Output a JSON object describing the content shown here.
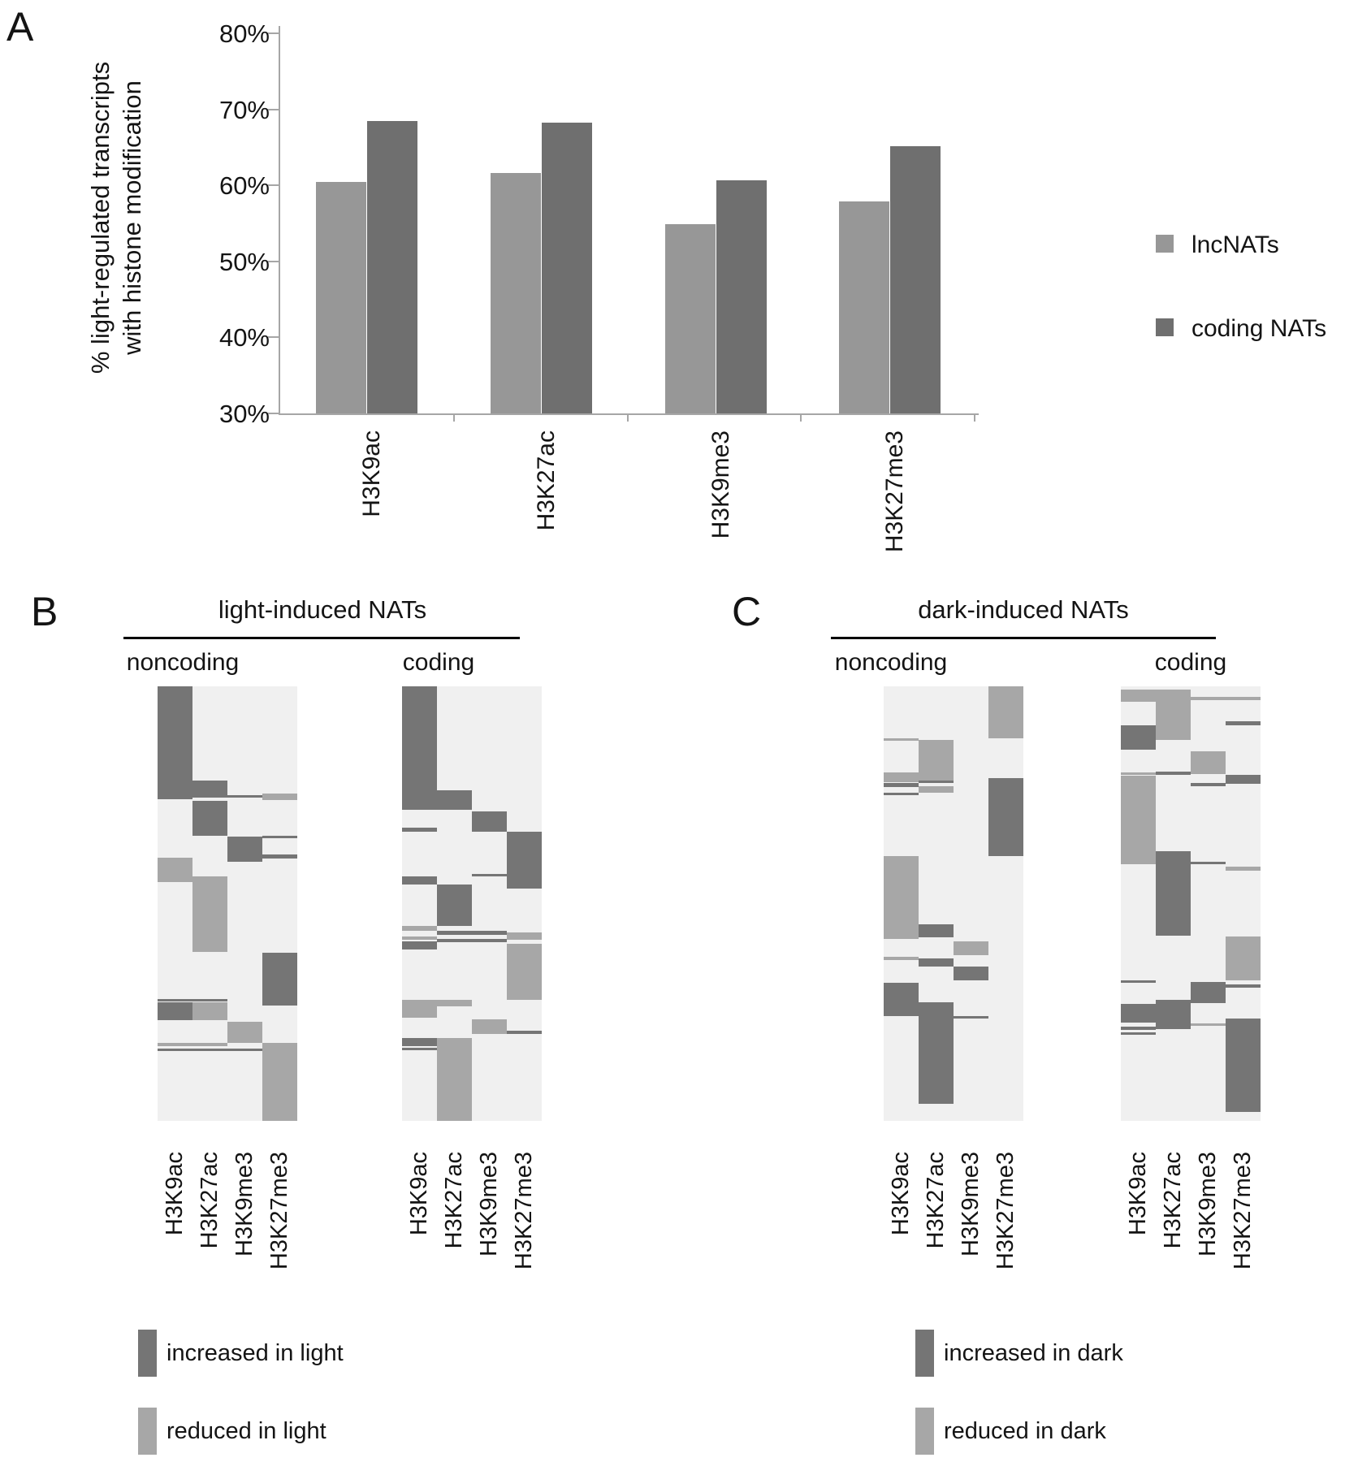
{
  "colors": {
    "bar_light": "#979797",
    "bar_dark": "#6f6f6f",
    "heat_bg": "#f0f0f0",
    "heat_dark": "#757575",
    "heat_light": "#a7a7a7",
    "axis_gray": "#a6a6a6",
    "title_line": "#000000"
  },
  "panel_a": {
    "letter": "A",
    "legend": [
      {
        "name": "lncNATs",
        "shade": "light"
      },
      {
        "name": "coding NATs",
        "shade": "dark"
      }
    ]
  },
  "panel_b": {
    "letter": "B",
    "legend": [
      {
        "label": "increased in light",
        "shade": "dark"
      },
      {
        "label": "reduced in light",
        "shade": "light"
      }
    ]
  },
  "panel_c": {
    "letter": "C",
    "legend": [
      {
        "label": "increased in dark",
        "shade": "dark"
      },
      {
        "label": "reduced in dark",
        "shade": "light"
      }
    ]
  },
  "chart_data": [
    {
      "type": "bar",
      "panel": "A",
      "title": "",
      "ylabel_lines": [
        "% light-regulated transcripts",
        "with histone modification"
      ],
      "categories": [
        "H3K9ac",
        "H3K27ac",
        "H3K9me3",
        "H3K27me3"
      ],
      "series": [
        {
          "name": "lncNATs",
          "shade": "light",
          "values": [
            60.4,
            61.6,
            54.9,
            57.9
          ]
        },
        {
          "name": "coding NATs",
          "shade": "dark",
          "values": [
            68.5,
            68.3,
            60.7,
            65.2
          ]
        }
      ],
      "ylim": [
        30,
        80
      ],
      "yticks": [
        {
          "label": "80%",
          "value": 80
        },
        {
          "label": "70%",
          "value": 70
        },
        {
          "label": "60%",
          "value": 60
        },
        {
          "label": "50%",
          "value": 50
        },
        {
          "label": "40%",
          "value": 40
        },
        {
          "label": "30%",
          "value": 30
        }
      ],
      "grid": false,
      "legend_position": "right"
    },
    {
      "type": "heatmap",
      "panel": "B",
      "title": "light-induced NATs",
      "value_legend": [
        "increased in light",
        "reduced in light"
      ],
      "subpanels": [
        {
          "title": "noncoding",
          "columns": [
            "H3K9ac",
            "H3K27ac",
            "H3K9me3",
            "H3K27me3"
          ],
          "blocks": [
            [
              0,
              0,
              26,
              "d"
            ],
            [
              1,
              21.6,
              3.6,
              "d"
            ],
            [
              3,
              24.6,
              1.6,
              "l"
            ],
            [
              1,
              25.1,
              0.6,
              "d"
            ],
            [
              2,
              25.1,
              0.6,
              "d"
            ],
            [
              1,
              26.3,
              8.1,
              "d"
            ],
            [
              2,
              34.6,
              5.8,
              "d"
            ],
            [
              3,
              34.3,
              0.6,
              "d"
            ],
            [
              3,
              38.6,
              1,
              "d"
            ],
            [
              0,
              39.5,
              5.6,
              "l"
            ],
            [
              1,
              43.8,
              17.3,
              "l"
            ],
            [
              3,
              61.4,
              12.1,
              "d"
            ],
            [
              0,
              71.9,
              0.6,
              "d"
            ],
            [
              1,
              71.9,
              0.6,
              "d"
            ],
            [
              0,
              72.8,
              4,
              "d"
            ],
            [
              1,
              72.8,
              4,
              "l"
            ],
            [
              2,
              77.2,
              4.9,
              "l"
            ],
            [
              0,
              82.1,
              0.7,
              "l"
            ],
            [
              1,
              82.1,
              0.7,
              "l"
            ],
            [
              0,
              83.4,
              0.5,
              "d"
            ],
            [
              1,
              83.4,
              0.5,
              "d"
            ],
            [
              2,
              83.4,
              0.5,
              "d"
            ],
            [
              3,
              82.1,
              17.9,
              "l"
            ]
          ]
        },
        {
          "title": "coding",
          "columns": [
            "H3K9ac",
            "H3K27ac",
            "H3K9me3",
            "H3K27me3"
          ],
          "blocks": [
            [
              0,
              0,
              28.5,
              "d"
            ],
            [
              1,
              23.9,
              4.6,
              "d"
            ],
            [
              2,
              28.7,
              4.8,
              "d"
            ],
            [
              0,
              32.5,
              1,
              "d"
            ],
            [
              3,
              33.5,
              13,
              "d"
            ],
            [
              2,
              43.2,
              0.6,
              "d"
            ],
            [
              0,
              43.8,
              1.9,
              "d"
            ],
            [
              1,
              45.7,
              9.5,
              "d"
            ],
            [
              0,
              55.2,
              1,
              "l"
            ],
            [
              1,
              56.2,
              1,
              "d"
            ],
            [
              2,
              56.2,
              1,
              "d"
            ],
            [
              3,
              56.6,
              1.7,
              "l"
            ],
            [
              0,
              57.6,
              0.8,
              "l"
            ],
            [
              1,
              58.1,
              0.8,
              "d"
            ],
            [
              2,
              58.1,
              0.8,
              "d"
            ],
            [
              0,
              58.7,
              1.8,
              "d"
            ],
            [
              3,
              59.2,
              13,
              "l"
            ],
            [
              0,
              72.2,
              4,
              "l"
            ],
            [
              1,
              72.2,
              1.5,
              "l"
            ],
            [
              2,
              76.7,
              3.3,
              "l"
            ],
            [
              3,
              79.3,
              0.7,
              "d"
            ],
            [
              0,
              81,
              1.8,
              "d"
            ],
            [
              1,
              81,
              19,
              "l"
            ],
            [
              0,
              83.2,
              0.5,
              "d"
            ]
          ]
        }
      ]
    },
    {
      "type": "heatmap",
      "panel": "C",
      "title": "dark-induced NATs",
      "value_legend": [
        "increased in dark",
        "reduced in dark"
      ],
      "subpanels": [
        {
          "title": "noncoding",
          "columns": [
            "H3K9ac",
            "H3K27ac",
            "H3K9me3",
            "H3K27me3"
          ],
          "blocks": [
            [
              3,
              0,
              12,
              "l"
            ],
            [
              0,
              11.9,
              0.6,
              "l"
            ],
            [
              1,
              12.3,
              9.4,
              "l"
            ],
            [
              0,
              19.9,
              2.1,
              "l"
            ],
            [
              0,
              22.2,
              1,
              "d"
            ],
            [
              1,
              21.7,
              0.6,
              "d"
            ],
            [
              3,
              21.1,
              18,
              "d"
            ],
            [
              1,
              23,
              1.4,
              "l"
            ],
            [
              0,
              24.5,
              0.6,
              "d"
            ],
            [
              0,
              39.1,
              19,
              "l"
            ],
            [
              1,
              54.7,
              3.1,
              "d"
            ],
            [
              2,
              58.7,
              3.1,
              "l"
            ],
            [
              0,
              62.3,
              0.6,
              "l"
            ],
            [
              1,
              62.7,
              1.8,
              "d"
            ],
            [
              2,
              64.5,
              3.1,
              "d"
            ],
            [
              0,
              68.3,
              7.5,
              "d"
            ],
            [
              1,
              72.8,
              23.2,
              "d"
            ],
            [
              2,
              75.8,
              0.6,
              "d"
            ]
          ]
        },
        {
          "title": "coding",
          "columns": [
            "H3K9ac",
            "H3K27ac",
            "H3K9me3",
            "H3K27me3"
          ],
          "blocks": [
            [
              0,
              0.8,
              2.7,
              "l"
            ],
            [
              1,
              0.8,
              11.6,
              "l"
            ],
            [
              2,
              2.5,
              0.6,
              "l"
            ],
            [
              3,
              2.5,
              0.6,
              "l"
            ],
            [
              3,
              8,
              0.9,
              "d"
            ],
            [
              0,
              9,
              5.6,
              "d"
            ],
            [
              2,
              15,
              5.2,
              "l"
            ],
            [
              0,
              19.8,
              0.5,
              "l"
            ],
            [
              1,
              19.6,
              0.8,
              "d"
            ],
            [
              3,
              20.3,
              2.2,
              "d"
            ],
            [
              2,
              22.2,
              0.8,
              "d"
            ],
            [
              0,
              20.5,
              20.5,
              "l"
            ],
            [
              1,
              37.9,
              19.4,
              "d"
            ],
            [
              2,
              40.4,
              0.6,
              "d"
            ],
            [
              3,
              41.5,
              1,
              "l"
            ],
            [
              3,
              57.5,
              10.1,
              "l"
            ],
            [
              0,
              67.6,
              0.7,
              "d"
            ],
            [
              2,
              68,
              4.9,
              "d"
            ],
            [
              3,
              68.6,
              0.8,
              "d"
            ],
            [
              1,
              72.2,
              6.7,
              "d"
            ],
            [
              0,
              73.1,
              4.3,
              "d"
            ],
            [
              0,
              78.4,
              0.6,
              "d"
            ],
            [
              0,
              79.6,
              0.6,
              "d"
            ],
            [
              3,
              76.5,
              21.5,
              "d"
            ],
            [
              2,
              77.5,
              0.6,
              "l"
            ]
          ]
        }
      ]
    }
  ]
}
